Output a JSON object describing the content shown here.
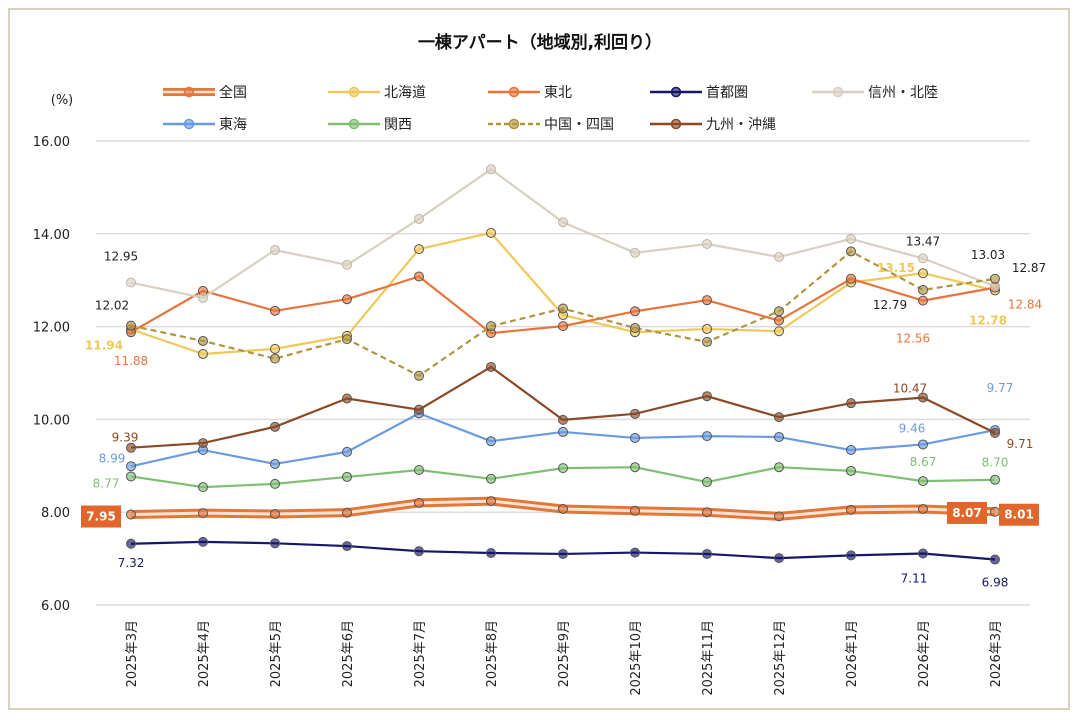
{
  "chart_data": {
    "type": "line",
    "title": "一棟アパート（地域別,利回り）",
    "ylabel": "(%)",
    "xlabel": "",
    "ylim": [
      6,
      16
    ],
    "yticks": [
      "6.00",
      "8.00",
      "10.00",
      "12.00",
      "14.00",
      "16.00"
    ],
    "grid": true,
    "legend_position": "top",
    "categories": [
      "2025年3月",
      "2025年4月",
      "2025年5月",
      "2025年6月",
      "2025年7月",
      "2025年8月",
      "2025年9月",
      "2025年10月",
      "2025年11月",
      "2025年12月",
      "2026年1月",
      "2026年2月",
      "2026年3月"
    ],
    "series": [
      {
        "name": "全国",
        "color": "#e2773a",
        "style": "double",
        "values": [
          7.95,
          7.98,
          7.96,
          7.99,
          8.2,
          8.24,
          8.07,
          8.03,
          8.0,
          7.91,
          8.05,
          8.07,
          8.01
        ],
        "labels": {
          "0": "7.95",
          "11": "8.07",
          "12": "8.01"
        }
      },
      {
        "name": "北海道",
        "color": "#f0c85a",
        "style": "solid",
        "values": [
          11.94,
          11.41,
          11.52,
          11.8,
          13.67,
          14.02,
          12.25,
          11.88,
          11.95,
          11.9,
          12.95,
          13.15,
          12.78
        ],
        "labels": {
          "0": "11.94",
          "11": "13.15",
          "12": "12.78"
        }
      },
      {
        "name": "東北",
        "color": "#e8743b",
        "style": "solid",
        "values": [
          11.88,
          12.77,
          12.34,
          12.59,
          13.08,
          11.86,
          12.01,
          12.33,
          12.57,
          12.13,
          13.03,
          12.56,
          12.84
        ],
        "labels": {
          "0": "11.88",
          "11": "12.56",
          "12": "12.84"
        }
      },
      {
        "name": "首都圏",
        "color": "#16166b",
        "style": "solid",
        "values": [
          7.32,
          7.36,
          7.33,
          7.27,
          7.16,
          7.12,
          7.1,
          7.13,
          7.1,
          7.01,
          7.07,
          7.11,
          6.98
        ],
        "labels": {
          "0": "7.32",
          "11": "7.11",
          "12": "6.98"
        }
      },
      {
        "name": "信州・北陸",
        "color": "#d8d0c0",
        "style": "solid",
        "values": [
          12.95,
          12.62,
          13.65,
          13.33,
          14.32,
          15.39,
          14.25,
          13.59,
          13.78,
          13.5,
          13.89,
          13.47,
          12.87
        ],
        "labels": {
          "0": "12.95",
          "11": "13.47",
          "12": "12.87"
        }
      },
      {
        "name": "東海",
        "color": "#6a9be0",
        "style": "solid",
        "values": [
          8.99,
          9.34,
          9.04,
          9.3,
          10.13,
          9.53,
          9.73,
          9.6,
          9.64,
          9.62,
          9.34,
          9.46,
          9.77
        ],
        "labels": {
          "0": "8.99",
          "11": "9.46",
          "12": "9.77"
        }
      },
      {
        "name": "関西",
        "color": "#7fbf73",
        "style": "solid",
        "values": [
          8.77,
          8.54,
          8.61,
          8.76,
          8.91,
          8.72,
          8.95,
          8.97,
          8.65,
          8.97,
          8.89,
          8.67,
          8.7
        ],
        "labels": {
          "0": "8.77",
          "11": "8.67",
          "12": "8.70"
        }
      },
      {
        "name": "中国・四国",
        "color": "#b09540",
        "style": "dashed",
        "values": [
          12.02,
          11.69,
          11.31,
          11.73,
          10.94,
          12.01,
          12.39,
          11.97,
          11.67,
          12.33,
          13.62,
          12.79,
          13.03
        ],
        "labels": {
          "0": "12.02",
          "11": "12.79",
          "12": "13.03"
        }
      },
      {
        "name": "九州・沖縄",
        "color": "#8b4a25",
        "style": "solid",
        "values": [
          9.39,
          9.49,
          9.84,
          10.45,
          10.21,
          11.13,
          9.99,
          10.12,
          10.5,
          10.05,
          10.35,
          10.47,
          9.71
        ],
        "labels": {
          "0": "9.39",
          "11": "10.47",
          "12": "9.71"
        }
      }
    ]
  }
}
